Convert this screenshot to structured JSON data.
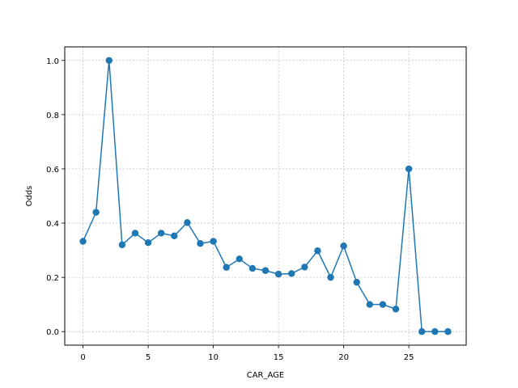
{
  "chart_data": {
    "type": "line",
    "title": "",
    "xlabel": "CAR_AGE",
    "ylabel": "Odds",
    "xlim": [
      -1.4,
      29.4
    ],
    "ylim": [
      -0.05,
      1.05
    ],
    "xticks": [
      0,
      5,
      10,
      15,
      20,
      25
    ],
    "yticks": [
      0.0,
      0.2,
      0.4,
      0.6,
      0.8,
      1.0
    ],
    "xtick_labels": [
      "0",
      "5",
      "10",
      "15",
      "20",
      "25"
    ],
    "ytick_labels": [
      "0.0",
      "0.2",
      "0.4",
      "0.6",
      "0.8",
      "1.0"
    ],
    "grid": true,
    "marker": "circle",
    "color": "#1f77b4",
    "x": [
      0,
      1,
      2,
      3,
      4,
      5,
      6,
      7,
      8,
      9,
      10,
      11,
      12,
      13,
      14,
      15,
      16,
      17,
      18,
      19,
      20,
      21,
      22,
      23,
      24,
      25,
      26,
      27,
      28
    ],
    "y": [
      0.333,
      0.44,
      1.0,
      0.32,
      0.363,
      0.328,
      0.363,
      0.353,
      0.402,
      0.325,
      0.333,
      0.237,
      0.268,
      0.233,
      0.225,
      0.212,
      0.214,
      0.238,
      0.298,
      0.2,
      0.316,
      0.182,
      0.1,
      0.1,
      0.083,
      0.6,
      0.0,
      0.0,
      0.0
    ]
  }
}
